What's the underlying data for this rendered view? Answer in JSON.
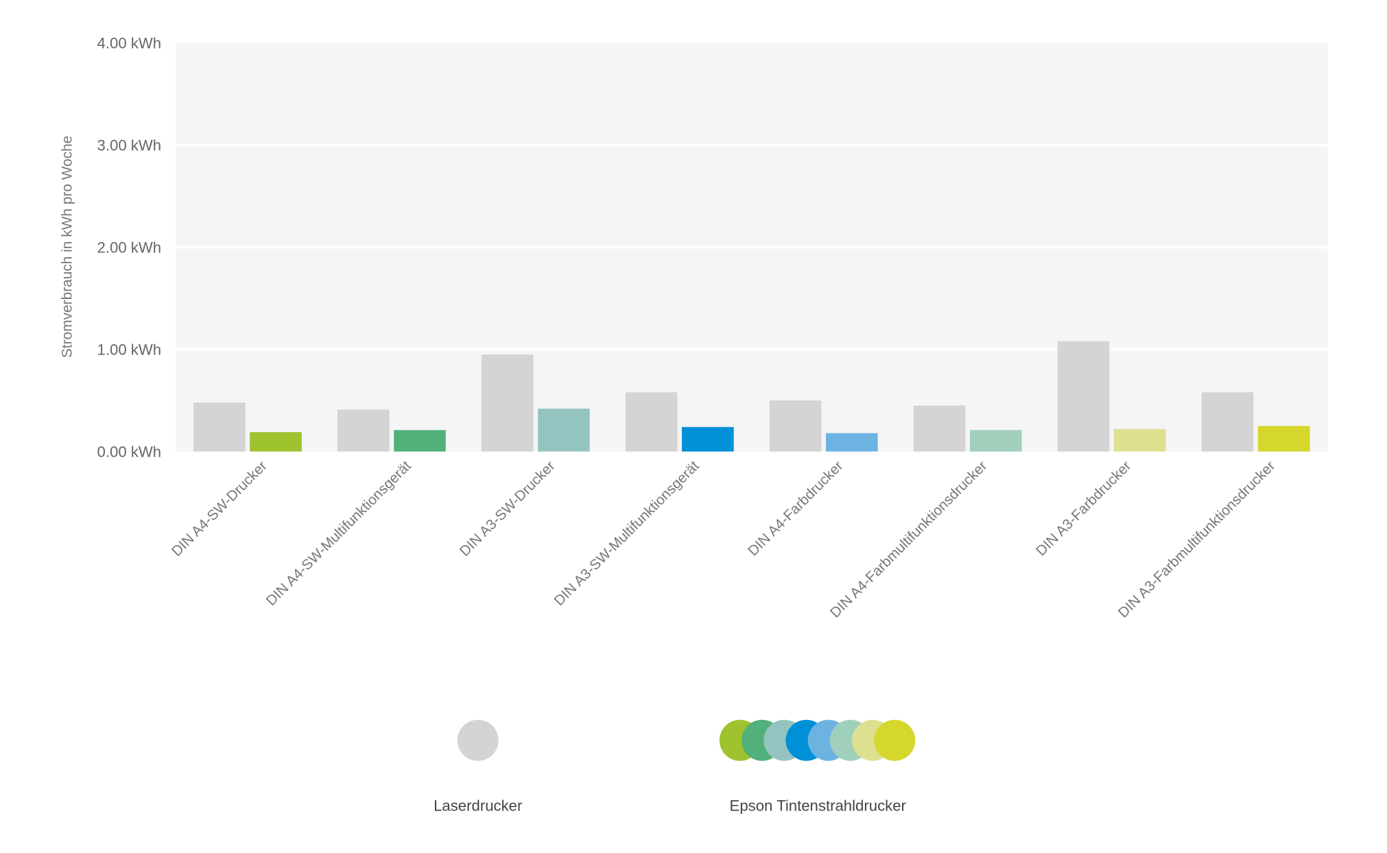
{
  "chart_data": {
    "type": "bar",
    "title": "",
    "xlabel": "",
    "ylabel": "Stromverbrauch in kWh pro Woche",
    "ylim": [
      0,
      4
    ],
    "yticks": [
      0,
      1,
      2,
      3,
      4
    ],
    "ytick_labels": [
      "0.00 kWh",
      "1.00 kWh",
      "2.00 kWh",
      "3.00 kWh",
      "4.00 kWh"
    ],
    "grid": true,
    "legend_position": "bottom",
    "categories": [
      "DIN A4-SW-Drucker",
      "DIN A4-SW-Multifunktionsgerät",
      "DIN A3-SW-Drucker",
      "DIN A3-SW-Multifunktionsgerät",
      "DIN A4-Farbdrucker",
      "DIN A4-Farbmultifunktionsdrucker",
      "DIN A3-Farbdrucker",
      "DIN A3-Farbmultifunktionsdrucker"
    ],
    "series": [
      {
        "name": "Laserdrucker",
        "values": [
          0.48,
          0.41,
          0.95,
          0.58,
          0.5,
          0.45,
          1.08,
          0.58
        ],
        "colors": [
          "#d4d4d4"
        ]
      },
      {
        "name": "Epson Tintenstrahldrucker",
        "values": [
          0.19,
          0.21,
          0.42,
          0.24,
          0.18,
          0.21,
          0.22,
          0.25
        ],
        "colors": [
          "#9fc22f",
          "#52b07a",
          "#95c4c0",
          "#0090d8",
          "#6db3e2",
          "#a0d0bb",
          "#dde08f",
          "#d5d72c"
        ]
      }
    ],
    "plot_background": "#f5f5f5"
  }
}
